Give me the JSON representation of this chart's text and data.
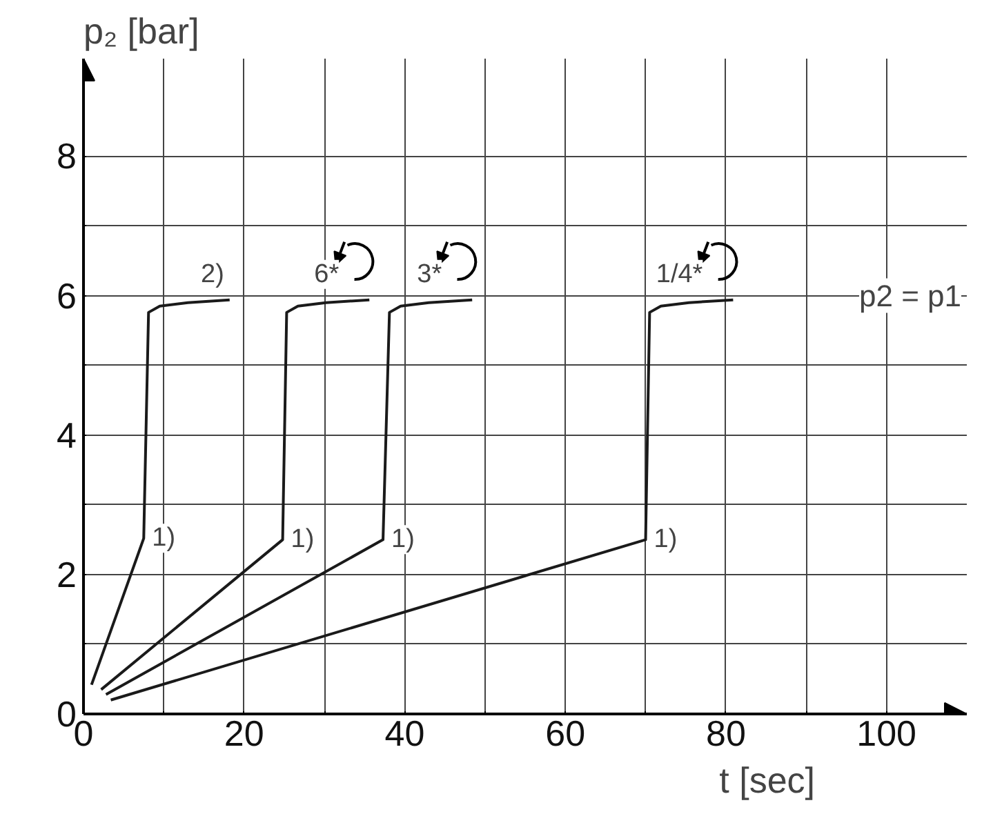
{
  "chart_data": {
    "type": "line",
    "xlabel": "t [sec]",
    "ylabel": "p₂ [bar]",
    "xlim": [
      0,
      110
    ],
    "ylim": [
      0,
      9.4
    ],
    "xticks": [
      0,
      {
        "value": 10,
        "label": null
      },
      20,
      {
        "value": 30,
        "label": null
      },
      40,
      {
        "value": 50,
        "label": null
      },
      60,
      {
        "value": 70,
        "label": null
      },
      80,
      {
        "value": 90,
        "label": null
      },
      100
    ],
    "yticks": [
      0,
      {
        "value": 1,
        "label": null
      },
      2,
      {
        "value": 3,
        "label": null
      },
      4,
      {
        "value": 5,
        "label": null
      },
      6,
      {
        "value": 7,
        "label": null
      },
      8
    ],
    "grid": true,
    "marker": "none",
    "line_style": "solid",
    "series": [
      {
        "color": "#1a1a1a",
        "x": [
          1,
          7.5,
          8.1,
          9.5,
          13,
          18.2
        ],
        "values": [
          0.42,
          2.52,
          5.76,
          5.85,
          5.9,
          5.94
        ]
      },
      {
        "color": "#1a1a1a",
        "x": [
          2.2,
          24.8,
          25.3,
          26.7,
          30.2,
          35.6
        ],
        "values": [
          0.35,
          2.5,
          5.76,
          5.85,
          5.9,
          5.94
        ]
      },
      {
        "color": "#1a1a1a",
        "x": [
          2.8,
          37.3,
          38.1,
          39.5,
          43,
          48.4
        ],
        "values": [
          0.28,
          2.5,
          5.76,
          5.85,
          5.9,
          5.94
        ]
      },
      {
        "color": "#1a1a1a",
        "x": [
          3.4,
          70,
          70.5,
          71.9,
          75.4,
          80.9
        ],
        "values": [
          0.2,
          2.5,
          5.76,
          5.85,
          5.9,
          5.94
        ]
      }
    ],
    "annotations": [
      {
        "text": "1)",
        "x": 7.5,
        "y": 2.52
      },
      {
        "text": "1)",
        "x": 24.8,
        "y": 2.5
      },
      {
        "text": "1)",
        "x": 37.3,
        "y": 2.5
      },
      {
        "text": "1)",
        "x": 70,
        "y": 2.5
      },
      "2)",
      "6*",
      "3*",
      "1/4*",
      "p2 = p1"
    ]
  }
}
